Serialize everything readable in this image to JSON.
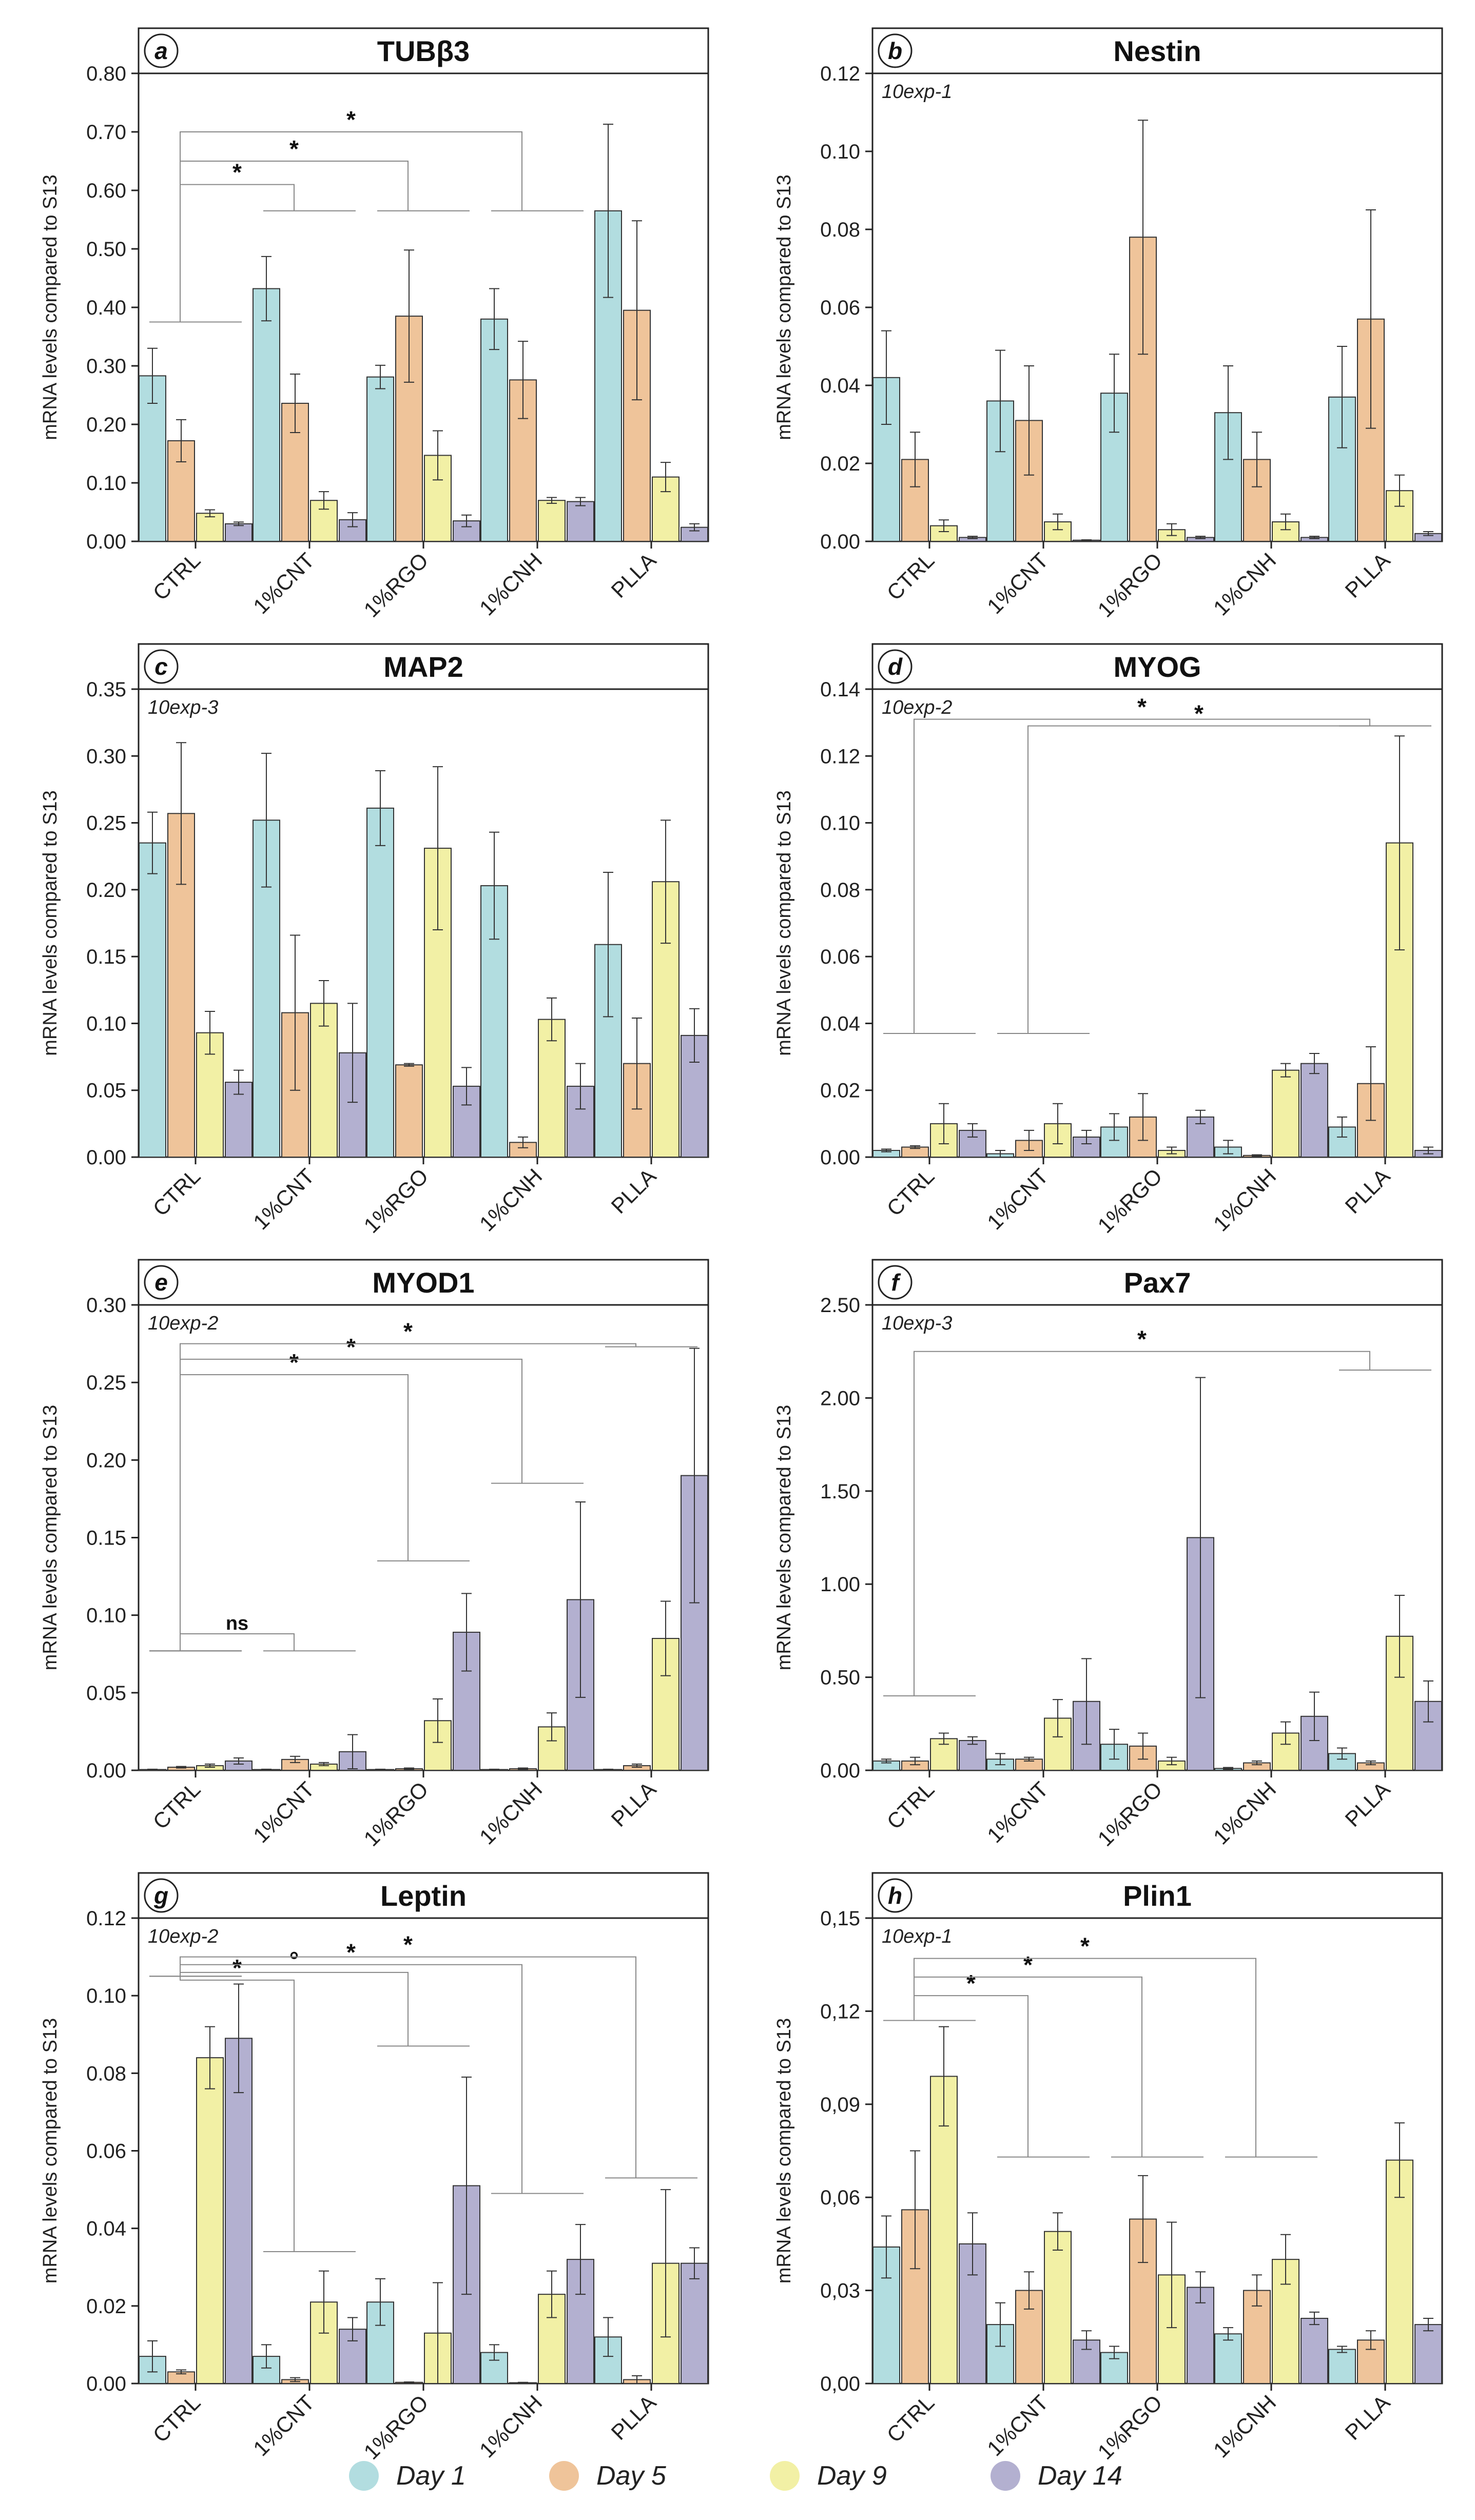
{
  "colors": {
    "day1": "#b2dde0",
    "day5": "#efc49a",
    "day9": "#f2f0a5",
    "day14": "#b3b0d0",
    "stroke": "#333333",
    "axis": "#222222",
    "bracket": "#888888"
  },
  "legend": [
    {
      "label": "Day 1",
      "color": "#b2dde0"
    },
    {
      "label": "Day 5",
      "color": "#efc49a"
    },
    {
      "label": "Day 9",
      "color": "#f2f0a5"
    },
    {
      "label": "Day 14",
      "color": "#b3b0d0"
    }
  ],
  "chart_data": [
    {
      "id": "a",
      "title": "TUBβ3",
      "type": "bar",
      "ylabel": "mRNA levels compared to S13",
      "scale_note": "",
      "categories": [
        "CTRL",
        "1%CNT",
        "1%RGO",
        "1%CNH",
        "PLLA"
      ],
      "ylim": [
        0,
        0.8
      ],
      "yticks": [
        "0.00",
        "0.10",
        "0.20",
        "0.30",
        "0.40",
        "0.50",
        "0.60",
        "0.70",
        "0.80"
      ],
      "series": [
        {
          "name": "Day 1",
          "values": [
            0.283,
            0.432,
            0.281,
            0.38,
            0.565
          ],
          "errors": [
            0.047,
            0.055,
            0.02,
            0.052,
            0.148
          ]
        },
        {
          "name": "Day 5",
          "values": [
            0.172,
            0.236,
            0.385,
            0.276,
            0.395
          ],
          "errors": [
            0.036,
            0.05,
            0.113,
            0.066,
            0.153
          ]
        },
        {
          "name": "Day 9",
          "values": [
            0.048,
            0.07,
            0.147,
            0.07,
            0.11
          ],
          "errors": [
            0.006,
            0.015,
            0.042,
            0.005,
            0.025
          ]
        },
        {
          "name": "Day 14",
          "values": [
            0.03,
            0.037,
            0.035,
            0.068,
            0.024
          ],
          "errors": [
            0.003,
            0.012,
            0.01,
            0.007,
            0.006
          ]
        }
      ],
      "brackets": [
        {
          "from": 0,
          "to": 1,
          "level": 0.61,
          "label": "*"
        },
        {
          "from": 0,
          "to": 2,
          "level": 0.65,
          "label": "*"
        },
        {
          "from": 0,
          "to": 3,
          "level": 0.7,
          "label": "*"
        }
      ],
      "from_y": 0.375,
      "to_y": 0.565
    },
    {
      "id": "b",
      "title": "Nestin",
      "type": "bar",
      "ylabel": "mRNA levels compared to S13",
      "scale_note": "10exp-1",
      "categories": [
        "CTRL",
        "1%CNT",
        "1%RGO",
        "1%CNH",
        "PLLA"
      ],
      "ylim": [
        0,
        0.12
      ],
      "yticks": [
        "0.00",
        "0.02",
        "0.04",
        "0.06",
        "0.08",
        "0.10",
        "0.12"
      ],
      "series": [
        {
          "name": "Day 1",
          "values": [
            0.042,
            0.036,
            0.038,
            0.033,
            0.037
          ],
          "errors": [
            0.012,
            0.013,
            0.01,
            0.012,
            0.013
          ]
        },
        {
          "name": "Day 5",
          "values": [
            0.021,
            0.031,
            0.078,
            0.021,
            0.057
          ],
          "errors": [
            0.007,
            0.014,
            0.03,
            0.007,
            0.028
          ]
        },
        {
          "name": "Day 9",
          "values": [
            0.004,
            0.005,
            0.003,
            0.005,
            0.013
          ],
          "errors": [
            0.0015,
            0.002,
            0.0015,
            0.002,
            0.004
          ]
        },
        {
          "name": "Day 14",
          "values": [
            0.001,
            0.0003,
            0.001,
            0.001,
            0.002
          ],
          "errors": [
            0.0003,
            0.0001,
            0.0003,
            0.0003,
            0.0005
          ]
        }
      ],
      "brackets": []
    },
    {
      "id": "c",
      "title": "MAP2",
      "type": "bar",
      "ylabel": "mRNA levels compared to S13",
      "scale_note": "10exp-3",
      "categories": [
        "CTRL",
        "1%CNT",
        "1%RGO",
        "1%CNH",
        "PLLA"
      ],
      "ylim": [
        0,
        0.35
      ],
      "yticks": [
        "0.00",
        "0.05",
        "0.10",
        "0.15",
        "0.20",
        "0.25",
        "0.30",
        "0.35"
      ],
      "series": [
        {
          "name": "Day 1",
          "values": [
            0.235,
            0.252,
            0.261,
            0.203,
            0.159
          ],
          "errors": [
            0.023,
            0.05,
            0.028,
            0.04,
            0.054
          ]
        },
        {
          "name": "Day 5",
          "values": [
            0.257,
            0.108,
            0.069,
            0.011,
            0.07
          ],
          "errors": [
            0.053,
            0.058,
            0.001,
            0.004,
            0.034
          ]
        },
        {
          "name": "Day 9",
          "values": [
            0.093,
            0.115,
            0.231,
            0.103,
            0.206
          ],
          "errors": [
            0.016,
            0.017,
            0.061,
            0.016,
            0.046
          ]
        },
        {
          "name": "Day 14",
          "values": [
            0.056,
            0.078,
            0.053,
            0.053,
            0.091
          ],
          "errors": [
            0.009,
            0.037,
            0.014,
            0.017,
            0.02
          ]
        }
      ],
      "brackets": []
    },
    {
      "id": "d",
      "title": "MYOG",
      "type": "bar",
      "ylabel": "mRNA levels compared to S13",
      "scale_note": "10exp-2",
      "categories": [
        "CTRL",
        "1%CNT",
        "1%RGO",
        "1%CNH",
        "PLLA"
      ],
      "ylim": [
        0,
        0.14
      ],
      "yticks": [
        "0.00",
        "0.02",
        "0.04",
        "0.06",
        "0.08",
        "0.10",
        "0.12",
        "0.14"
      ],
      "series": [
        {
          "name": "Day 1",
          "values": [
            0.002,
            0.001,
            0.009,
            0.003,
            0.009
          ],
          "errors": [
            0.0004,
            0.001,
            0.004,
            0.002,
            0.003
          ]
        },
        {
          "name": "Day 5",
          "values": [
            0.003,
            0.005,
            0.012,
            0.0005,
            0.022
          ],
          "errors": [
            0.0004,
            0.003,
            0.007,
            0.0002,
            0.011
          ]
        },
        {
          "name": "Day 9",
          "values": [
            0.01,
            0.01,
            0.002,
            0.026,
            0.094
          ],
          "errors": [
            0.006,
            0.006,
            0.001,
            0.002,
            0.032
          ]
        },
        {
          "name": "Day 14",
          "values": [
            0.008,
            0.006,
            0.012,
            0.028,
            0.002
          ],
          "errors": [
            0.002,
            0.002,
            0.002,
            0.003,
            0.001
          ]
        }
      ],
      "brackets": [
        {
          "from": 1,
          "to": 4,
          "level": 0.129,
          "label": "*"
        },
        {
          "from": 0,
          "to": 4,
          "level": 0.131,
          "label": "*"
        }
      ],
      "from_y": 0.037,
      "to_y": 0.129
    },
    {
      "id": "e",
      "title": "MYOD1",
      "type": "bar",
      "ylabel": "mRNA levels compared to S13",
      "scale_note": "10exp-2",
      "categories": [
        "CTRL",
        "1%CNT",
        "1%RGO",
        "1%CNH",
        "PLLA"
      ],
      "ylim": [
        0,
        0.3
      ],
      "yticks": [
        "0.00",
        "0.05",
        "0.10",
        "0.15",
        "0.20",
        "0.25",
        "0.30"
      ],
      "series": [
        {
          "name": "Day 1",
          "values": [
            0.0005,
            0.0005,
            0.0005,
            0.0005,
            0.0005
          ],
          "errors": [
            0.0002,
            0.0002,
            0.0002,
            0.0002,
            0.0002
          ]
        },
        {
          "name": "Day 5",
          "values": [
            0.002,
            0.007,
            0.001,
            0.001,
            0.003
          ],
          "errors": [
            0.0005,
            0.002,
            0.0005,
            0.0005,
            0.001
          ]
        },
        {
          "name": "Day 9",
          "values": [
            0.003,
            0.004,
            0.032,
            0.028,
            0.085
          ],
          "errors": [
            0.001,
            0.001,
            0.014,
            0.009,
            0.024
          ]
        },
        {
          "name": "Day 14",
          "values": [
            0.006,
            0.012,
            0.089,
            0.11,
            0.19
          ],
          "errors": [
            0.002,
            0.011,
            0.025,
            0.063,
            0.082
          ]
        }
      ],
      "brackets": [
        {
          "from": 0,
          "to": 1,
          "level": 0.088,
          "label": "ns"
        },
        {
          "from": 0,
          "to": 2,
          "level": 0.255,
          "label": "*"
        },
        {
          "from": 0,
          "to": 3,
          "level": 0.265,
          "label": "*"
        },
        {
          "from": 0,
          "to": 4,
          "level": 0.275,
          "label": "*"
        }
      ],
      "from_y": 0.077,
      "to_y_list": [
        0.077,
        0.135,
        0.185,
        0.273
      ]
    },
    {
      "id": "f",
      "title": "Pax7",
      "type": "bar",
      "ylabel": "mRNA levels compared to S13",
      "scale_note": "10exp-3",
      "categories": [
        "CTRL",
        "1%CNT",
        "1%RGO",
        "1%CNH",
        "PLLA"
      ],
      "ylim": [
        0,
        2.5
      ],
      "yticks": [
        "0.00",
        "0.50",
        "1.00",
        "1.50",
        "2.00",
        "2.50"
      ],
      "series": [
        {
          "name": "Day 1",
          "values": [
            0.05,
            0.06,
            0.14,
            0.01,
            0.09
          ],
          "errors": [
            0.01,
            0.03,
            0.08,
            0.005,
            0.03
          ]
        },
        {
          "name": "Day 5",
          "values": [
            0.05,
            0.06,
            0.13,
            0.04,
            0.04
          ],
          "errors": [
            0.02,
            0.01,
            0.07,
            0.01,
            0.01
          ]
        },
        {
          "name": "Day 9",
          "values": [
            0.17,
            0.28,
            0.05,
            0.2,
            0.72
          ],
          "errors": [
            0.03,
            0.1,
            0.02,
            0.06,
            0.22
          ]
        },
        {
          "name": "Day 14",
          "values": [
            0.16,
            0.37,
            1.25,
            0.29,
            0.37
          ],
          "errors": [
            0.02,
            0.23,
            0.86,
            0.13,
            0.11
          ]
        }
      ],
      "brackets": [
        {
          "from": 0,
          "to": 4,
          "level": 2.25,
          "label": "*"
        }
      ],
      "from_y": 0.4,
      "to_y": 2.15
    },
    {
      "id": "g",
      "title": "Leptin",
      "type": "bar",
      "ylabel": "mRNA levels compared to S13",
      "scale_note": "10exp-2",
      "categories": [
        "CTRL",
        "1%CNT",
        "1%RGO",
        "1%CNH",
        "PLLA"
      ],
      "ylim": [
        0,
        0.12
      ],
      "yticks": [
        "0.00",
        "0.02",
        "0.04",
        "0.06",
        "0.08",
        "0.10",
        "0.12"
      ],
      "series": [
        {
          "name": "Day 1",
          "values": [
            0.007,
            0.007,
            0.021,
            0.008,
            0.012
          ],
          "errors": [
            0.004,
            0.003,
            0.006,
            0.002,
            0.005
          ]
        },
        {
          "name": "Day 5",
          "values": [
            0.003,
            0.001,
            0.0003,
            0.0002,
            0.001
          ],
          "errors": [
            0.0005,
            0.0005,
            0.0001,
            0.0001,
            0.001
          ]
        },
        {
          "name": "Day 9",
          "values": [
            0.084,
            0.021,
            0.013,
            0.023,
            0.031
          ],
          "errors": [
            0.008,
            0.008,
            0.013,
            0.006,
            0.019
          ]
        },
        {
          "name": "Day 14",
          "values": [
            0.089,
            0.014,
            0.051,
            0.032,
            0.031
          ],
          "errors": [
            0.014,
            0.003,
            0.028,
            0.009,
            0.004
          ]
        }
      ],
      "brackets": [
        {
          "from": 0,
          "to": 1,
          "level": 0.104,
          "label": "*"
        },
        {
          "from": 0,
          "to": 2,
          "level": 0.106,
          "label": "°"
        },
        {
          "from": 0,
          "to": 3,
          "level": 0.108,
          "label": "*"
        },
        {
          "from": 0,
          "to": 4,
          "level": 0.11,
          "label": "*"
        }
      ],
      "from_y": 0.105,
      "to_y_list": [
        0.034,
        0.087,
        0.049,
        0.053
      ]
    },
    {
      "id": "h",
      "title": "Plin1",
      "type": "bar",
      "ylabel": "mRNA levels compared to S13",
      "scale_note": "10exp-1",
      "categories": [
        "CTRL",
        "1%CNT",
        "1%RGO",
        "1%CNH",
        "PLLA"
      ],
      "ylim": [
        0,
        0.15
      ],
      "yticks": [
        "0,00",
        "0,03",
        "0,06",
        "0,09",
        "0,12",
        "0,15"
      ],
      "series": [
        {
          "name": "Day 1",
          "values": [
            0.044,
            0.019,
            0.01,
            0.016,
            0.011
          ],
          "errors": [
            0.01,
            0.007,
            0.002,
            0.002,
            0.001
          ]
        },
        {
          "name": "Day 5",
          "values": [
            0.056,
            0.03,
            0.053,
            0.03,
            0.014
          ],
          "errors": [
            0.019,
            0.006,
            0.014,
            0.005,
            0.003
          ]
        },
        {
          "name": "Day 9",
          "values": [
            0.099,
            0.049,
            0.035,
            0.04,
            0.072
          ],
          "errors": [
            0.016,
            0.006,
            0.017,
            0.008,
            0.012
          ]
        },
        {
          "name": "Day 14",
          "values": [
            0.045,
            0.014,
            0.031,
            0.021,
            0.019
          ],
          "errors": [
            0.01,
            0.003,
            0.005,
            0.002,
            0.002
          ]
        }
      ],
      "brackets": [
        {
          "from": 0,
          "to": 1,
          "level": 0.125,
          "label": "*"
        },
        {
          "from": 0,
          "to": 2,
          "level": 0.131,
          "label": "*"
        },
        {
          "from": 0,
          "to": 3,
          "level": 0.137,
          "label": "*"
        }
      ],
      "from_y": 0.117,
      "to_y": 0.073
    }
  ]
}
